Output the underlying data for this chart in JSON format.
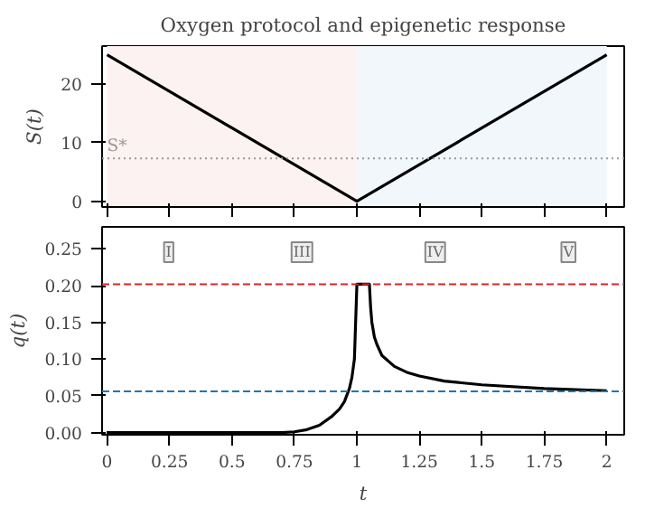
{
  "chart_data": [
    {
      "type": "line",
      "title": "Oxygen protocol and epigenetic response",
      "ylabel": "S(t)",
      "x": [
        0,
        1,
        2
      ],
      "series": [
        {
          "color": "#000000",
          "values": [
            25,
            0,
            25
          ]
        }
      ],
      "xlim": [
        -0.02,
        2.07
      ],
      "ylim": [
        -1,
        26.5
      ],
      "xticks": [
        0,
        0.25,
        0.5,
        0.75,
        1,
        1.25,
        1.5,
        1.75,
        2
      ],
      "yticks": [
        0,
        10,
        20
      ],
      "tick_labels": "y",
      "grid": false,
      "ref_lines": [
        {
          "axis": "y",
          "value": 7.3,
          "label": "S*",
          "color": "#999999",
          "line_style": "dotted"
        }
      ],
      "bands": [
        {
          "axis": "x",
          "from": 0,
          "to": 1,
          "color": "#fdf2f2"
        },
        {
          "axis": "x",
          "from": 1,
          "to": 2,
          "color": "#f2f7fc"
        }
      ]
    },
    {
      "type": "line",
      "xlabel": "t",
      "ylabel": "q(t)",
      "x": [
        0,
        0.7,
        0.75,
        0.8,
        0.85,
        0.9,
        0.93,
        0.95,
        0.97,
        0.98,
        0.99,
        1.0,
        1.05,
        1.055,
        1.06,
        1.07,
        1.08,
        1.1,
        1.15,
        1.2,
        1.25,
        1.35,
        1.5,
        1.75,
        2.0
      ],
      "series": [
        {
          "color": "#000000",
          "values": [
            0,
            0,
            0.001,
            0.004,
            0.01,
            0.022,
            0.032,
            0.042,
            0.06,
            0.075,
            0.1,
            0.202,
            0.202,
            0.17,
            0.15,
            0.13,
            0.12,
            0.105,
            0.09,
            0.082,
            0.077,
            0.07,
            0.065,
            0.06,
            0.057
          ]
        }
      ],
      "xlim": [
        -0.02,
        2.07
      ],
      "ylim": [
        -0.003,
        0.28
      ],
      "xticks": [
        0,
        0.25,
        0.5,
        0.75,
        1,
        1.25,
        1.5,
        1.75,
        2
      ],
      "yticks": [
        {
          "value": 0,
          "label": "0.00"
        },
        {
          "value": 0.05,
          "label": "0.05"
        },
        {
          "value": 0.1,
          "label": "0.10"
        },
        {
          "value": 0.15,
          "label": "0.15"
        },
        {
          "value": 0.2,
          "label": "0.20"
        },
        {
          "value": 0.25,
          "label": "0.25"
        }
      ],
      "grid": false,
      "ref_lines": [
        {
          "axis": "y",
          "value": 0.202,
          "color": "#d62728",
          "line_style": "dashed"
        },
        {
          "axis": "y",
          "value": 0.056,
          "color": "#1f77b4",
          "line_style": "dashed"
        }
      ],
      "annotations": [
        "I",
        "III",
        "IV",
        "V"
      ]
    }
  ]
}
